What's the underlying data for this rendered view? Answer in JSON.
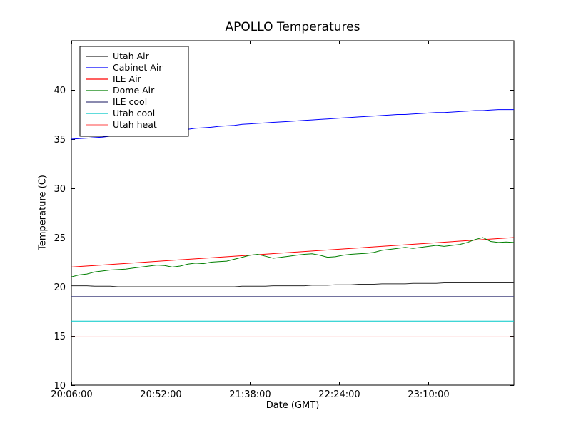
{
  "chart_data": {
    "type": "line",
    "title": "APOLLO Temperatures",
    "xlabel": "Date (GMT)",
    "ylabel": "Temperature (C)",
    "x_unit": "minutes since 20:06:00 GMT",
    "xlim": [
      0,
      228
    ],
    "ylim": [
      10,
      45
    ],
    "grid": false,
    "legend_position": "upper-left",
    "x_ticks": [
      {
        "m": 0,
        "label": "20:06:00"
      },
      {
        "m": 46,
        "label": "20:52:00"
      },
      {
        "m": 92,
        "label": "21:38:00"
      },
      {
        "m": 138,
        "label": "22:24:00"
      },
      {
        "m": 184,
        "label": "23:10:00"
      }
    ],
    "y_ticks": [
      10,
      15,
      20,
      25,
      30,
      35,
      40
    ],
    "sample_minutes": [
      0,
      4,
      8,
      12,
      16,
      20,
      24,
      28,
      32,
      36,
      40,
      44,
      48,
      52,
      56,
      60,
      64,
      68,
      72,
      76,
      80,
      84,
      88,
      92,
      96,
      100,
      104,
      108,
      112,
      116,
      120,
      124,
      128,
      132,
      136,
      140,
      144,
      148,
      152,
      156,
      160,
      164,
      168,
      172,
      176,
      180,
      184,
      188,
      192,
      196,
      200,
      204,
      208,
      212,
      216,
      220,
      224,
      228
    ],
    "series": [
      {
        "name": "Utah Air",
        "color": "#2e2e2e",
        "y": [
          20.1,
          20.1,
          20.1,
          20.05,
          20.05,
          20.05,
          20.0,
          20.0,
          20.0,
          20.0,
          20.0,
          20.0,
          20.0,
          20.0,
          20.0,
          20.0,
          20.0,
          20.0,
          20.0,
          20.0,
          20.0,
          20.0,
          20.05,
          20.05,
          20.05,
          20.05,
          20.1,
          20.1,
          20.1,
          20.1,
          20.1,
          20.15,
          20.15,
          20.15,
          20.2,
          20.2,
          20.2,
          20.25,
          20.25,
          20.25,
          20.3,
          20.3,
          20.3,
          20.3,
          20.35,
          20.35,
          20.35,
          20.35,
          20.4,
          20.4,
          20.4,
          20.4,
          20.4,
          20.4,
          20.4,
          20.4,
          20.4,
          20.4
        ]
      },
      {
        "name": "Cabinet Air",
        "color": "#0000ff",
        "y": [
          35.0,
          35.05,
          35.1,
          35.15,
          35.2,
          35.3,
          35.35,
          35.4,
          35.5,
          35.55,
          35.6,
          35.7,
          35.8,
          35.85,
          35.9,
          36.0,
          36.1,
          36.15,
          36.2,
          36.3,
          36.35,
          36.4,
          36.5,
          36.55,
          36.6,
          36.65,
          36.7,
          36.75,
          36.8,
          36.85,
          36.9,
          36.95,
          37.0,
          37.05,
          37.1,
          37.15,
          37.2,
          37.25,
          37.3,
          37.35,
          37.4,
          37.45,
          37.5,
          37.5,
          37.55,
          37.6,
          37.65,
          37.7,
          37.7,
          37.75,
          37.8,
          37.85,
          37.9,
          37.9,
          37.95,
          38.0,
          38.0,
          38.0
        ]
      },
      {
        "name": "ILE Air",
        "color": "#ff0000",
        "x": [
          0,
          228
        ],
        "y": [
          22.0,
          25.0
        ]
      },
      {
        "name": "Dome Air",
        "color": "#007f00",
        "y": [
          21.0,
          21.2,
          21.3,
          21.5,
          21.6,
          21.7,
          21.75,
          21.8,
          21.9,
          22.0,
          22.1,
          22.2,
          22.15,
          22.0,
          22.1,
          22.3,
          22.4,
          22.35,
          22.5,
          22.55,
          22.6,
          22.8,
          23.0,
          23.2,
          23.3,
          23.1,
          22.9,
          23.0,
          23.1,
          23.2,
          23.3,
          23.35,
          23.2,
          23.0,
          23.05,
          23.2,
          23.3,
          23.35,
          23.4,
          23.5,
          23.7,
          23.8,
          23.9,
          24.0,
          23.9,
          24.0,
          24.1,
          24.2,
          24.1,
          24.2,
          24.3,
          24.5,
          24.8,
          25.0,
          24.6,
          24.5,
          24.55,
          24.5
        ]
      },
      {
        "name": "ILE cool",
        "color": "#43437f",
        "x": [
          0,
          228
        ],
        "y": [
          19.0,
          19.0
        ]
      },
      {
        "name": "Utah cool",
        "color": "#00c8c8",
        "x": [
          0,
          228
        ],
        "y": [
          16.5,
          16.5
        ]
      },
      {
        "name": "Utah heat",
        "color": "#ff6b6b",
        "x": [
          0,
          228
        ],
        "y": [
          14.9,
          14.9
        ]
      }
    ]
  }
}
